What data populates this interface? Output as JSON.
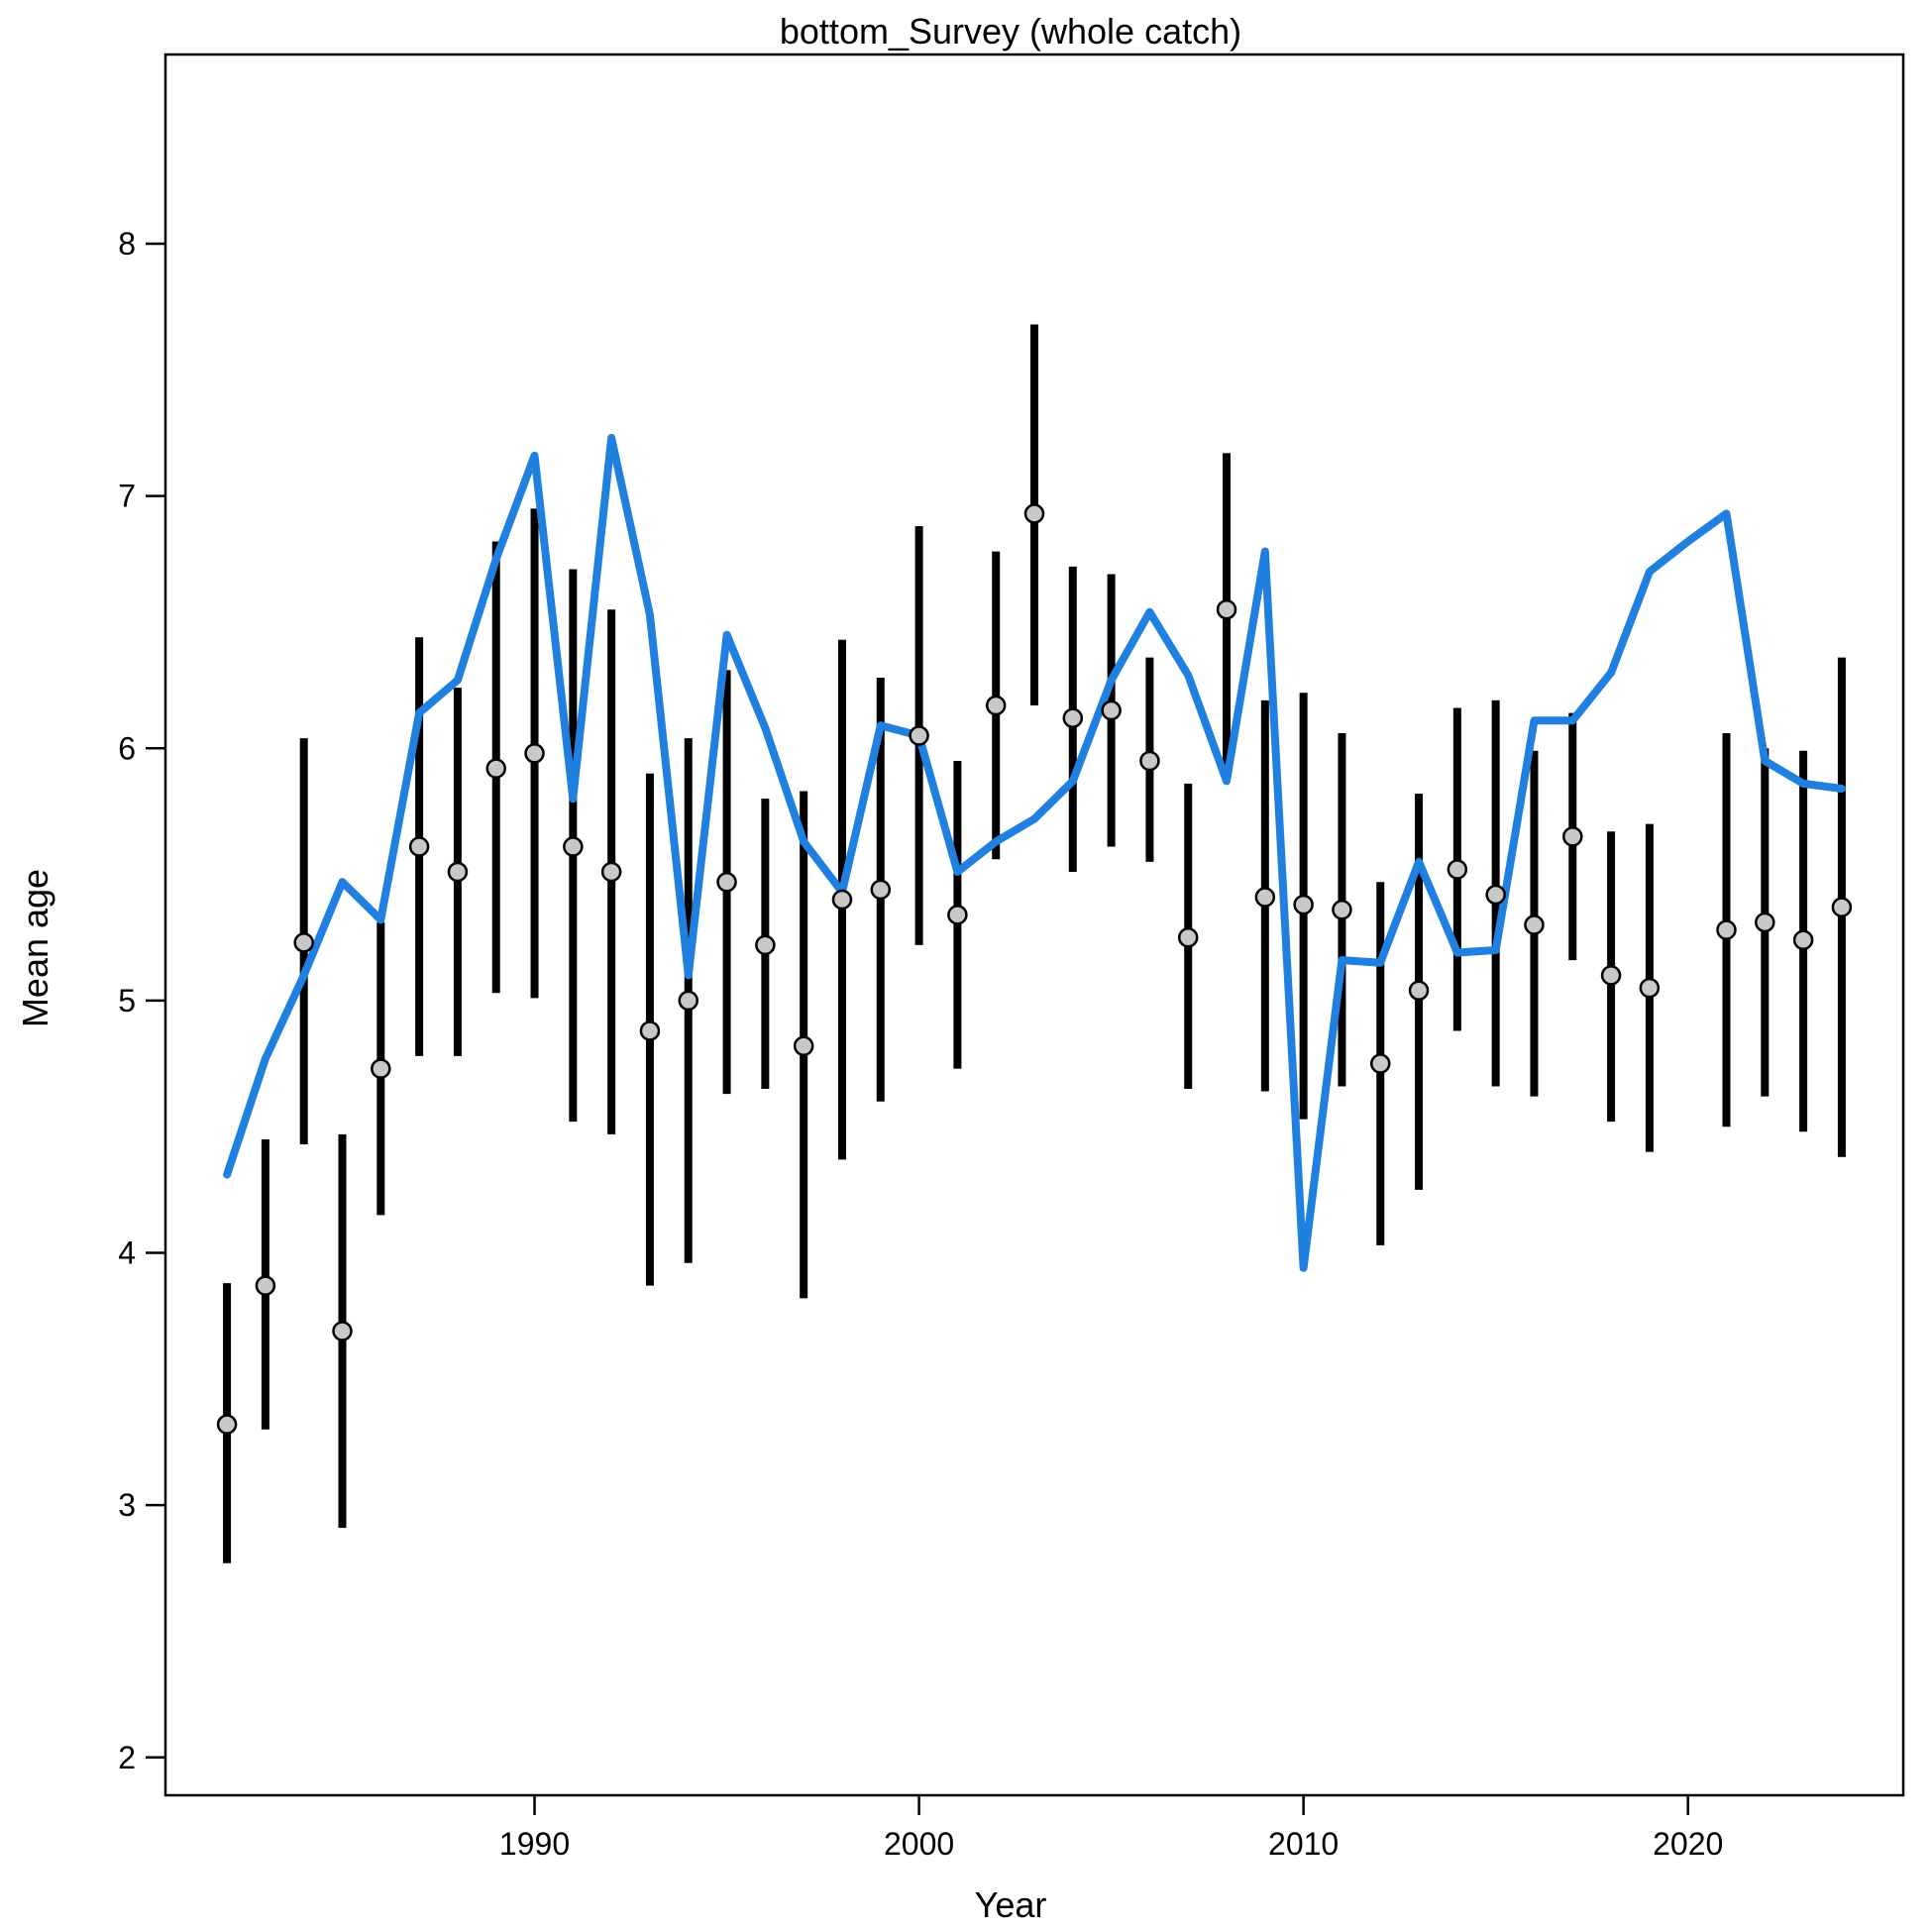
{
  "chart_data": {
    "type": "scatter",
    "title": "bottom_Survey (whole catch)",
    "xlabel": "Year",
    "ylabel": "Mean age",
    "xlim": [
      1980.4,
      2025.6
    ],
    "ylim": [
      1.85,
      8.75
    ],
    "xticks": [
      1990,
      2000,
      2010,
      2020
    ],
    "yticks": [
      2,
      3,
      4,
      5,
      6,
      7,
      8
    ],
    "grid": false,
    "colors": {
      "observed_point": "#c8c8c8",
      "error_bar": "#000000",
      "expected_line": "#2080e0"
    },
    "observed": {
      "x": [
        1982,
        1983,
        1984,
        1985,
        1986,
        1987,
        1988,
        1989,
        1990,
        1991,
        1992,
        1993,
        1994,
        1995,
        1996,
        1997,
        1998,
        1999,
        2000,
        2001,
        2002,
        2003,
        2004,
        2005,
        2006,
        2007,
        2008,
        2009,
        2010,
        2011,
        2012,
        2013,
        2014,
        2015,
        2016,
        2017,
        2018,
        2019,
        2021,
        2022,
        2023,
        2024
      ],
      "y": [
        3.32,
        3.87,
        5.23,
        3.69,
        4.73,
        5.61,
        5.51,
        5.92,
        5.98,
        5.61,
        5.51,
        4.88,
        5.0,
        5.47,
        5.22,
        4.82,
        5.4,
        5.44,
        6.05,
        5.34,
        6.17,
        6.93,
        6.12,
        6.15,
        5.95,
        5.25,
        6.55,
        5.41,
        5.38,
        5.36,
        4.75,
        5.04,
        5.52,
        5.42,
        5.3,
        5.65,
        5.1,
        5.05,
        5.28,
        5.31,
        5.24,
        5.37
      ],
      "lower": [
        2.77,
        3.3,
        4.43,
        2.91,
        4.15,
        4.78,
        4.78,
        5.03,
        5.01,
        4.52,
        4.47,
        3.87,
        3.96,
        4.63,
        4.65,
        3.82,
        4.37,
        4.6,
        5.22,
        4.73,
        5.56,
        6.17,
        5.51,
        5.61,
        5.55,
        4.65,
        5.93,
        4.64,
        4.53,
        4.66,
        4.03,
        4.25,
        4.88,
        4.66,
        4.62,
        5.16,
        4.52,
        4.4,
        4.5,
        4.62,
        4.48,
        4.38
      ],
      "upper": [
        3.88,
        4.45,
        6.04,
        4.47,
        5.31,
        6.44,
        6.24,
        6.82,
        6.95,
        6.71,
        6.55,
        5.9,
        6.04,
        6.31,
        5.8,
        5.83,
        6.43,
        6.28,
        6.88,
        5.95,
        6.78,
        7.68,
        6.72,
        6.69,
        6.36,
        5.86,
        7.17,
        6.19,
        6.22,
        6.06,
        5.47,
        5.82,
        6.16,
        6.19,
        5.99,
        6.14,
        5.67,
        5.7,
        6.06,
        6.0,
        5.99,
        6.36
      ]
    },
    "expected": {
      "x": [
        1982,
        1983,
        1984,
        1985,
        1986,
        1987,
        1988,
        1989,
        1990,
        1991,
        1992,
        1993,
        1994,
        1995,
        1996,
        1997,
        1998,
        1999,
        2000,
        2001,
        2002,
        2003,
        2004,
        2005,
        2006,
        2007,
        2008,
        2009,
        2010,
        2011,
        2012,
        2013,
        2014,
        2015,
        2016,
        2017,
        2018,
        2019,
        2020,
        2021,
        2022,
        2023,
        2024
      ],
      "y": [
        4.31,
        4.77,
        5.1,
        5.47,
        5.32,
        6.14,
        6.27,
        6.75,
        7.16,
        5.8,
        7.23,
        6.53,
        5.1,
        6.45,
        6.08,
        5.63,
        5.43,
        6.09,
        6.05,
        5.51,
        5.63,
        5.72,
        5.87,
        6.27,
        6.54,
        6.29,
        5.87,
        6.78,
        3.94,
        5.16,
        5.15,
        5.55,
        5.19,
        5.2,
        6.11,
        6.11,
        6.3,
        6.7,
        6.82,
        6.93,
        5.95,
        5.86,
        5.84
      ]
    }
  }
}
